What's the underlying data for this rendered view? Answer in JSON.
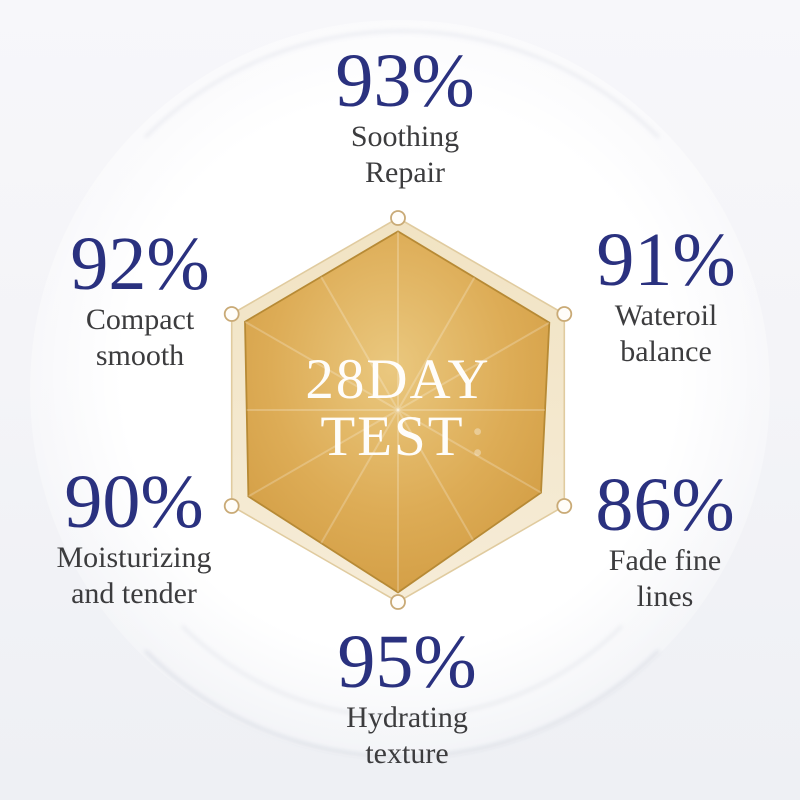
{
  "chart_data": {
    "type": "radar",
    "title": "28DAY TEST",
    "center_label": {
      "line1": "28DAY",
      "line2": "TEST",
      "suffix": ":"
    },
    "max": 100,
    "categories": [
      "Soothing Repair",
      "Wateroil balance",
      "Fade fine lines",
      "Hydrating texture",
      "Moisturizing and tender",
      "Compact smooth"
    ],
    "values": [
      93,
      91,
      86,
      95,
      90,
      92
    ],
    "layout": {
      "shape": "hexagon",
      "first_axis": "top",
      "direction": "clockwise",
      "grid": "outer hexagon with vertex dots and faint radial spokes",
      "legend": "none"
    },
    "stats": [
      {
        "value": "93%",
        "label_lines": [
          "Soothing",
          "Repair"
        ]
      },
      {
        "value": "91%",
        "label_lines": [
          "Wateroil",
          "balance"
        ]
      },
      {
        "value": "86%",
        "label_lines": [
          "Fade fine",
          "lines"
        ]
      },
      {
        "value": "95%",
        "label_lines": [
          "Hydrating",
          "texture"
        ]
      },
      {
        "value": "90%",
        "label_lines": [
          "Moisturizing",
          "and tender"
        ]
      },
      {
        "value": "92%",
        "label_lines": [
          "Compact",
          "smooth"
        ]
      }
    ]
  },
  "colors": {
    "accent_navy": "#2a317f",
    "label_gray": "#3c3c3e",
    "hex_outer_fill_top": "#f1e3c3",
    "hex_outer_fill_bottom": "#f6ecd7",
    "hex_outer_stroke": "#e0cb9f",
    "data_fill_light": "#eac87f",
    "data_fill_mid": "#ddac56",
    "data_fill_dark": "#d09a40",
    "data_stroke": "#b78a35",
    "marker_fill": "#fffdf9",
    "marker_stroke": "#c9aa76",
    "center_text": "#ffffff"
  }
}
